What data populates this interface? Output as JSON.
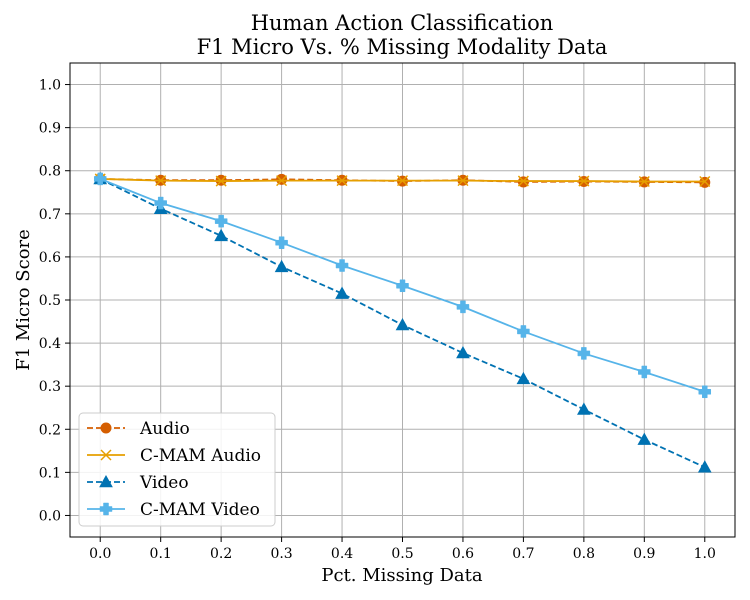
{
  "chart_data": {
    "type": "line",
    "title": "Human Action Classification",
    "subtitle": "F1 Micro Vs. % Missing Modality Data",
    "xlabel": "Pct. Missing Data",
    "ylabel": "F1 Micro Score",
    "xlim": [
      -0.05,
      1.05
    ],
    "ylim": [
      -0.05,
      1.05
    ],
    "grid": true,
    "legend_position": "lower-left",
    "xticks": [
      "0.0",
      "0.1",
      "0.2",
      "0.3",
      "0.4",
      "0.5",
      "0.6",
      "0.7",
      "0.8",
      "0.9",
      "1.0"
    ],
    "yticks": [
      "0.0",
      "0.1",
      "0.2",
      "0.3",
      "0.4",
      "0.5",
      "0.6",
      "0.7",
      "0.8",
      "0.9",
      "1.0"
    ],
    "x": [
      0.0,
      0.1,
      0.2,
      0.3,
      0.4,
      0.5,
      0.6,
      0.7,
      0.8,
      0.9,
      1.0
    ],
    "series": [
      {
        "name": "Audio",
        "color": "#d55e00",
        "linestyle": "dashed",
        "marker": "circle",
        "values": [
          0.781,
          0.778,
          0.778,
          0.78,
          0.778,
          0.776,
          0.778,
          0.774,
          0.775,
          0.774,
          0.773
        ]
      },
      {
        "name": "C-MAM Audio",
        "color": "#e69f00",
        "linestyle": "solid",
        "marker": "x",
        "values": [
          0.781,
          0.777,
          0.776,
          0.777,
          0.777,
          0.777,
          0.777,
          0.776,
          0.776,
          0.775,
          0.775
        ]
      },
      {
        "name": "Video",
        "color": "#0072b2",
        "linestyle": "dashed",
        "marker": "triangle",
        "values": [
          0.781,
          0.712,
          0.649,
          0.577,
          0.515,
          0.442,
          0.377,
          0.317,
          0.246,
          0.176,
          0.112
        ]
      },
      {
        "name": "C-MAM Video",
        "color": "#56b4e9",
        "linestyle": "solid",
        "marker": "plus",
        "values": [
          0.781,
          0.725,
          0.683,
          0.633,
          0.58,
          0.533,
          0.484,
          0.427,
          0.376,
          0.333,
          0.287
        ]
      }
    ]
  }
}
